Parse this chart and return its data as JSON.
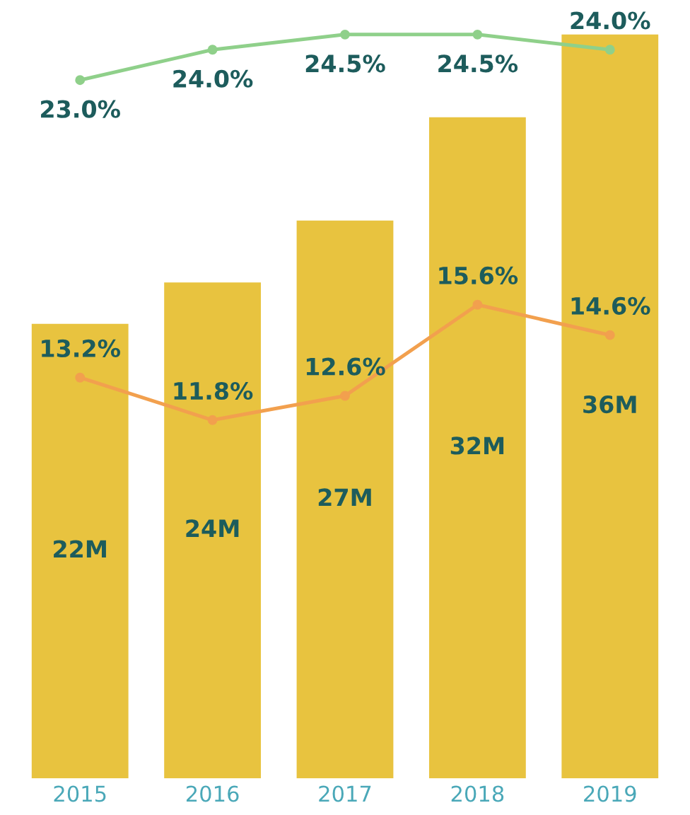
{
  "chart_data": {
    "type": "bar",
    "categories": [
      "2015",
      "2016",
      "2017",
      "2018",
      "2019"
    ],
    "tick_labels": "x",
    "grid": false,
    "legend": false,
    "series": [
      {
        "color": "#e8c33f",
        "values": [
          22,
          24,
          27,
          32,
          36
        ],
        "value_labels": [
          "22M",
          "24M",
          "27M",
          "32M",
          "36M"
        ]
      },
      {
        "type": "line",
        "axis": "y2",
        "color": "#8fd08a",
        "marker": "circle",
        "values": [
          23.0,
          24.0,
          24.5,
          24.5,
          24.0
        ],
        "value_labels": [
          "23.0%",
          "24.0%",
          "24.5%",
          "24.5%",
          "24.0%"
        ]
      },
      {
        "type": "line",
        "axis": "y2",
        "color": "#f2a04e",
        "marker": "circle",
        "values": [
          13.2,
          11.8,
          12.6,
          15.6,
          14.6
        ],
        "value_labels": [
          "13.2%",
          "11.8%",
          "12.6%",
          "15.6%",
          "14.6%"
        ]
      }
    ]
  }
}
